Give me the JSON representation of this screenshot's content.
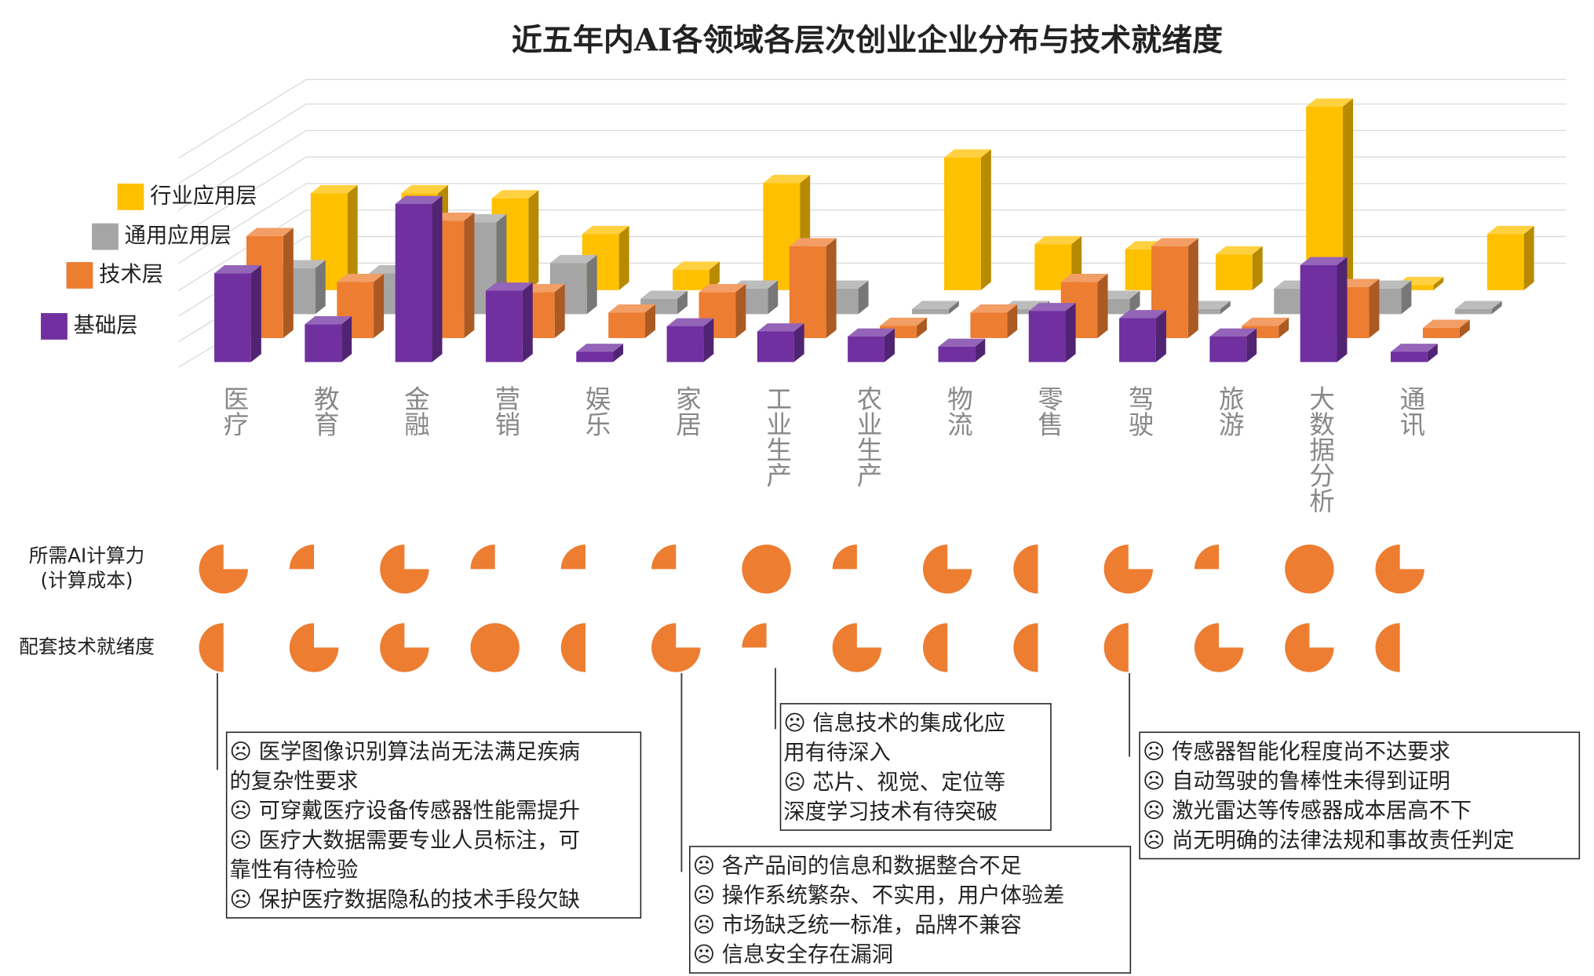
{
  "chart_data": {
    "type": "bar3d",
    "title": "近五年内AI各领域各层次创业企业分布与技术就绪度",
    "categories": [
      "医疗",
      "教育",
      "金融",
      "营销",
      "娱乐",
      "家居",
      "工业生产",
      "农业生产",
      "物流",
      "零售",
      "驾驶",
      "旅游",
      "大数据分析",
      "通讯"
    ],
    "series": [
      {
        "name": "行业应用层",
        "color": "#ffc000",
        "values": [
          95,
          95,
          90,
          55,
          20,
          105,
          null,
          130,
          45,
          40,
          35,
          180,
          5,
          55
        ]
      },
      {
        "name": "通用应用层",
        "color": "#a5a5a5",
        "values": [
          45,
          40,
          90,
          50,
          15,
          25,
          25,
          5,
          5,
          15,
          5,
          25,
          25,
          5
        ]
      },
      {
        "name": "技术层",
        "color": "#ed7d31",
        "values": [
          100,
          55,
          115,
          45,
          25,
          45,
          90,
          12,
          25,
          55,
          90,
          12,
          50,
          10
        ]
      },
      {
        "name": "基础层",
        "color": "#7030a0",
        "values": [
          87,
          37,
          155,
          70,
          10,
          35,
          30,
          25,
          15,
          50,
          43,
          25,
          95,
          10
        ]
      }
    ],
    "ylim": [
      0,
      200
    ]
  },
  "indicators": {
    "scale": [
      0,
      100
    ],
    "color": "#ed7d31",
    "rows": [
      {
        "label": [
          "所需AI计算力",
          "(计算成本)"
        ],
        "values": [
          75,
          25,
          75,
          25,
          25,
          25,
          100,
          25,
          75,
          50,
          75,
          25,
          100,
          75
        ]
      },
      {
        "label": [
          "配套技术就绪度"
        ],
        "values": [
          50,
          75,
          75,
          100,
          50,
          75,
          25,
          75,
          50,
          50,
          50,
          75,
          75,
          50
        ]
      }
    ]
  },
  "annotations": [
    {
      "lines": [
        "☹ 医学图像识别算法尚无法满足疾病",
        "的复杂性要求",
        "☹ 可穿戴医疗设备传感器性能需提升",
        "☹ 医疗大数据需要专业人员标注，可",
        "靠性有待检验",
        "☹ 保护医疗数据隐私的技术手段欠缺"
      ]
    },
    {
      "lines": [
        "☹ 各产品间的信息和数据整合不足",
        "☹ 操作系统繁杂、不实用，用户体验差",
        "☹ 市场缺乏统一标准，品牌不兼容",
        "☹ 信息安全存在漏洞"
      ]
    },
    {
      "lines": [
        "☹ 信息技术的集成化应",
        "用有待深入",
        "☹ 芯片、视觉、定位等",
        "深度学习技术有待突破"
      ]
    },
    {
      "lines": [
        "☹ 传感器智能化程度尚不达要求",
        "☹ 自动驾驶的鲁棒性未得到证明",
        "☹ 激光雷达等传感器成本居高不下",
        "☹ 尚无明确的法律法规和事故责任判定"
      ]
    }
  ]
}
